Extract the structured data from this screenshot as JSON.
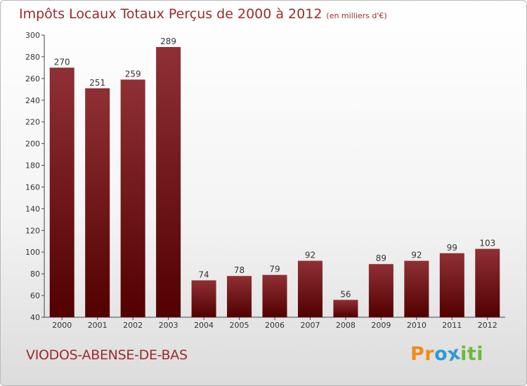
{
  "header": {
    "title": "Impôts Locaux Totaux Perçus de 2000 à 2012",
    "unit": "(en milliers d'€)"
  },
  "footer": {
    "commune": "VIODOS-ABENSE-DE-BAS",
    "logo": [
      "P",
      "r",
      "o",
      "x",
      "i",
      "t",
      "i"
    ]
  },
  "colors": {
    "bar_top": "#8f3034",
    "bar_bottom": "#520000",
    "title": "#9c2a2a",
    "logo": [
      "#f08b1a",
      "#f08b1a",
      "#2e9ad6",
      "#2e9ad6",
      "#6fb83c",
      "#6fb83c",
      "#6fb83c"
    ]
  },
  "chart_data": {
    "type": "bar",
    "title": "Impôts Locaux Totaux Perçus de 2000 à 2012",
    "subtitle": "(en milliers d'€)",
    "xlabel": "",
    "ylabel": "",
    "categories": [
      "2000",
      "2001",
      "2002",
      "2003",
      "2004",
      "2005",
      "2006",
      "2007",
      "2008",
      "2009",
      "2010",
      "2011",
      "2012"
    ],
    "values": [
      270,
      251,
      259,
      289,
      74,
      78,
      79,
      92,
      56,
      89,
      92,
      99,
      103
    ],
    "ylim": [
      40,
      300
    ],
    "yticks": [
      40,
      60,
      80,
      100,
      120,
      140,
      160,
      180,
      200,
      220,
      240,
      260,
      280,
      300
    ],
    "grid": false,
    "legend": "none"
  }
}
